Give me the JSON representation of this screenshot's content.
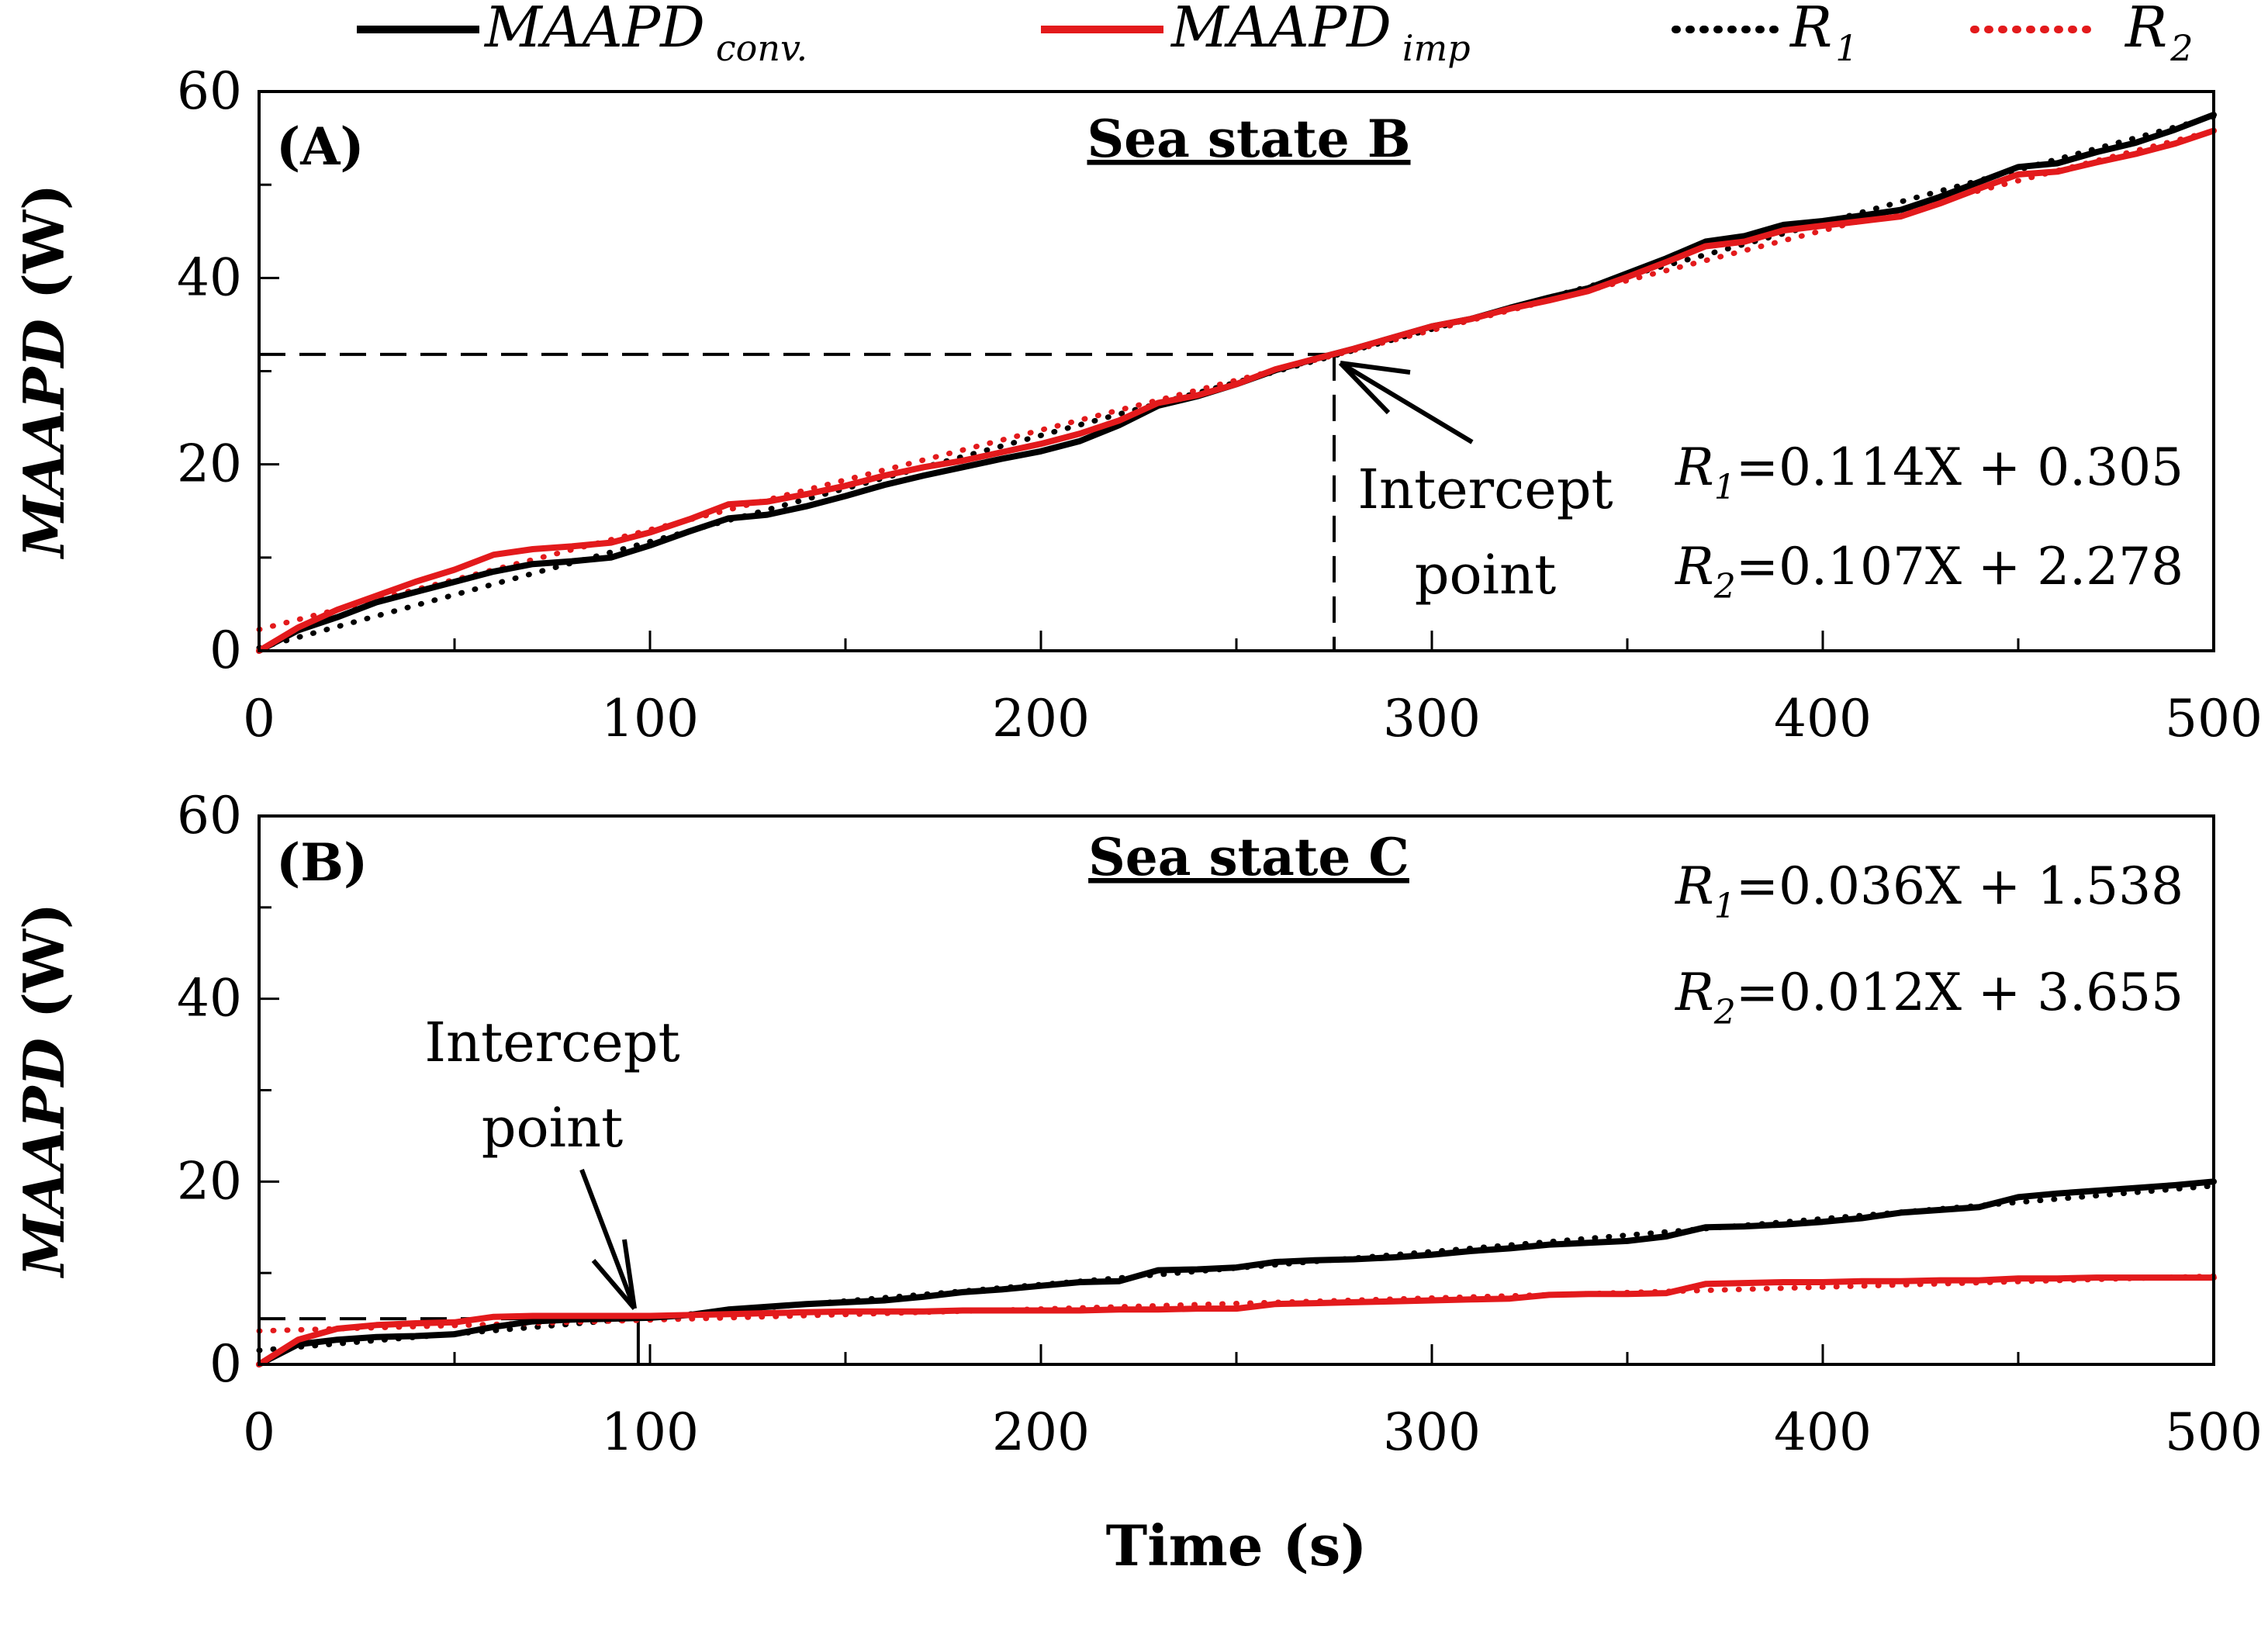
{
  "legend": {
    "items": [
      {
        "name": "MAAPD",
        "sub": "conv.",
        "color": "#000000",
        "dash": false
      },
      {
        "name": "MAAPD",
        "sub": "imp",
        "color": "#e31a1c",
        "dash": false
      },
      {
        "name": "R",
        "sub": "1",
        "color": "#000000",
        "dash": true
      },
      {
        "name": "R",
        "sub": "2",
        "color": "#e31a1c",
        "dash": true
      }
    ]
  },
  "colors": {
    "conv": "#000000",
    "imp": "#e31a1c"
  },
  "shared": {
    "xlabel": "Time (s)",
    "ylabel_italic": "MAAPD",
    "ylabel_unit": " (W)",
    "xlim": [
      0,
      500
    ],
    "ylim": [
      0,
      60
    ],
    "xticks": [
      0,
      100,
      200,
      300,
      400,
      500
    ],
    "yticks": [
      0,
      20,
      40,
      60
    ]
  },
  "chart_data": [
    {
      "type": "line",
      "panel": "(A)",
      "title": "Sea state B",
      "xlim": [
        0,
        500
      ],
      "ylim": [
        0,
        60
      ],
      "xticks": [
        0,
        100,
        200,
        300,
        400,
        500
      ],
      "yticks": [
        0,
        20,
        40,
        60
      ],
      "eq1_value": "=0.114X + 0.305",
      "eq2_value": "=0.107X + 2.278",
      "annotation_line1": "Intercept",
      "annotation_line2": "point",
      "intercept": {
        "x": 275,
        "y": 31.8
      },
      "series": [
        {
          "name": "MAAPD conv.",
          "color": "#000000",
          "style": "solid",
          "x": [
            0,
            10,
            20,
            30,
            40,
            50,
            60,
            70,
            80,
            90,
            100,
            110,
            120,
            130,
            140,
            150,
            160,
            170,
            180,
            190,
            200,
            210,
            220,
            230,
            240,
            250,
            260,
            270,
            280,
            290,
            300,
            310,
            320,
            330,
            340,
            350,
            360,
            370,
            380,
            390,
            400,
            410,
            420,
            430,
            440,
            450,
            460,
            470,
            480,
            490,
            500
          ],
          "y": [
            0,
            2.2,
            3.6,
            5.2,
            6.3,
            7.4,
            8.5,
            9.3,
            9.6,
            10,
            11.3,
            12.8,
            14.2,
            14.6,
            15.5,
            16.6,
            17.8,
            18.8,
            19.7,
            20.6,
            21.4,
            22.5,
            24.2,
            26.3,
            27.3,
            28.6,
            30.1,
            31.3,
            32.4,
            33.6,
            34.8,
            35.6,
            36.8,
            37.9,
            38.9,
            40.5,
            42.1,
            43.9,
            44.5,
            45.7,
            46.1,
            46.7,
            47.3,
            48.7,
            50.3,
            51.9,
            52.3,
            53.5,
            54.5,
            55.9,
            57.5
          ]
        },
        {
          "name": "MAAPD imp",
          "color": "#e31a1c",
          "style": "solid",
          "x": [
            0,
            10,
            20,
            30,
            40,
            50,
            60,
            70,
            80,
            90,
            100,
            110,
            120,
            130,
            140,
            150,
            160,
            170,
            180,
            190,
            200,
            210,
            220,
            230,
            240,
            250,
            260,
            270,
            280,
            290,
            300,
            310,
            320,
            330,
            340,
            350,
            360,
            370,
            380,
            390,
            400,
            410,
            420,
            430,
            440,
            450,
            460,
            470,
            480,
            490,
            500
          ],
          "y": [
            0,
            2.5,
            4.4,
            5.9,
            7.4,
            8.7,
            10.3,
            10.9,
            11.2,
            11.6,
            12.7,
            14.1,
            15.7,
            16,
            16.8,
            17.7,
            18.8,
            19.7,
            20.4,
            21.3,
            22.2,
            23.3,
            24.7,
            26.6,
            27.4,
            28.6,
            30.2,
            31.3,
            32.4,
            33.6,
            34.8,
            35.6,
            36.7,
            37.6,
            38.6,
            40.1,
            41.7,
            43.4,
            43.9,
            45.1,
            45.6,
            46.1,
            46.6,
            48,
            49.6,
            51.1,
            51.4,
            52.4,
            53.3,
            54.4,
            55.8
          ]
        },
        {
          "name": "R1",
          "color": "#000000",
          "style": "dotted",
          "x": [
            0,
            500
          ],
          "y": [
            0.305,
            57.305
          ]
        },
        {
          "name": "R2",
          "color": "#e31a1c",
          "style": "dotted",
          "x": [
            0,
            500
          ],
          "y": [
            2.278,
            55.778
          ]
        }
      ]
    },
    {
      "type": "line",
      "panel": "(B)",
      "title": "Sea state C",
      "xlim": [
        0,
        500
      ],
      "ylim": [
        0,
        60
      ],
      "xticks": [
        0,
        100,
        200,
        300,
        400,
        500
      ],
      "yticks": [
        0,
        20,
        40,
        60
      ],
      "eq1_value": "=0.036X + 1.538",
      "eq2_value": "=0.012X + 3.655",
      "annotation_line1": "Intercept",
      "annotation_line2": "point",
      "intercept": {
        "x": 97,
        "y": 5.0
      },
      "series": [
        {
          "name": "MAAPD conv.",
          "color": "#000000",
          "style": "solid",
          "x": [
            0,
            10,
            20,
            30,
            40,
            50,
            60,
            70,
            80,
            90,
            100,
            110,
            120,
            130,
            140,
            150,
            160,
            170,
            180,
            190,
            200,
            210,
            220,
            230,
            240,
            250,
            260,
            270,
            280,
            290,
            300,
            310,
            320,
            330,
            340,
            350,
            360,
            370,
            380,
            390,
            400,
            410,
            420,
            430,
            440,
            450,
            460,
            470,
            480,
            490,
            500
          ],
          "y": [
            0,
            2.2,
            2.7,
            3,
            3.1,
            3.3,
            4.1,
            4.7,
            4.9,
            5,
            5.1,
            5.4,
            6,
            6.3,
            6.6,
            6.8,
            7,
            7.4,
            7.9,
            8.2,
            8.6,
            9,
            9.1,
            10.3,
            10.4,
            10.6,
            11.2,
            11.4,
            11.5,
            11.7,
            12,
            12.4,
            12.7,
            13.1,
            13.3,
            13.5,
            14,
            15,
            15.1,
            15.3,
            15.6,
            16,
            16.6,
            16.9,
            17.2,
            18.3,
            18.7,
            19,
            19.3,
            19.6,
            20
          ]
        },
        {
          "name": "MAAPD imp",
          "color": "#e31a1c",
          "style": "solid",
          "x": [
            0,
            10,
            20,
            30,
            40,
            50,
            60,
            70,
            80,
            90,
            100,
            110,
            120,
            130,
            140,
            150,
            160,
            170,
            180,
            190,
            200,
            210,
            220,
            230,
            240,
            250,
            260,
            270,
            280,
            290,
            300,
            310,
            320,
            330,
            340,
            350,
            360,
            370,
            380,
            390,
            400,
            410,
            420,
            430,
            440,
            450,
            460,
            470,
            480,
            490,
            500
          ],
          "y": [
            0,
            2.7,
            3.9,
            4.3,
            4.5,
            4.6,
            5.2,
            5.3,
            5.3,
            5.3,
            5.3,
            5.4,
            5.5,
            5.6,
            5.7,
            5.8,
            5.8,
            5.8,
            5.9,
            5.9,
            5.9,
            5.9,
            6,
            6,
            6.1,
            6.1,
            6.6,
            6.7,
            6.8,
            6.9,
            7,
            7.1,
            7.2,
            7.6,
            7.7,
            7.7,
            7.8,
            8.8,
            8.9,
            9,
            9,
            9.1,
            9.1,
            9.2,
            9.2,
            9.4,
            9.4,
            9.5,
            9.5,
            9.5,
            9.5
          ]
        },
        {
          "name": "R1",
          "color": "#000000",
          "style": "dotted",
          "x": [
            0,
            500
          ],
          "y": [
            1.538,
            19.538
          ]
        },
        {
          "name": "R2",
          "color": "#e31a1c",
          "style": "dotted",
          "x": [
            0,
            500
          ],
          "y": [
            3.655,
            9.655
          ]
        }
      ]
    }
  ]
}
